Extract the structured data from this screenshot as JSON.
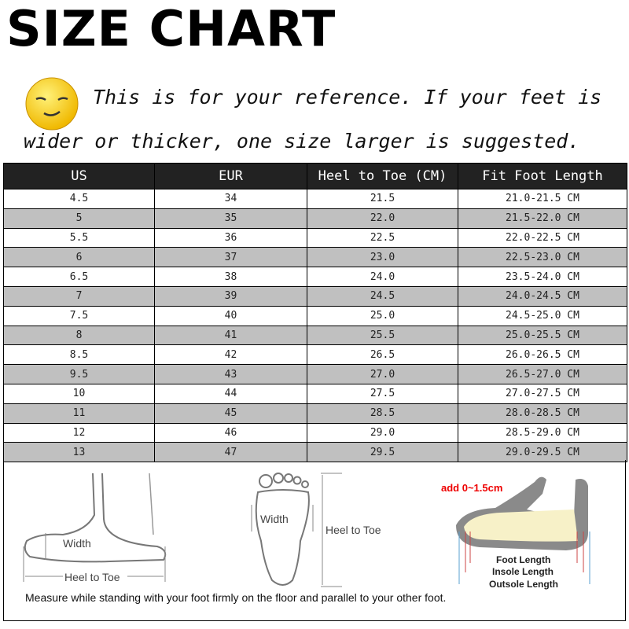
{
  "title": "SIZE CHART",
  "note": {
    "line1": "This is for your reference. If your feet is",
    "line2": "wider or thicker, one size larger is suggested.",
    "icon": "smiley-face-icon"
  },
  "table": {
    "headers": [
      "US",
      "EUR",
      "Heel to Toe (CM)",
      "Fit Foot Length"
    ],
    "rows": [
      [
        "4.5",
        "34",
        "21.5",
        "21.0-21.5 CM"
      ],
      [
        "5",
        "35",
        "22.0",
        "21.5-22.0 CM"
      ],
      [
        "5.5",
        "36",
        "22.5",
        "22.0-22.5 CM"
      ],
      [
        "6",
        "37",
        "23.0",
        "22.5-23.0 CM"
      ],
      [
        "6.5",
        "38",
        "24.0",
        "23.5-24.0 CM"
      ],
      [
        "7",
        "39",
        "24.5",
        "24.0-24.5 CM"
      ],
      [
        "7.5",
        "40",
        "25.0",
        "24.5-25.0 CM"
      ],
      [
        "8",
        "41",
        "25.5",
        "25.0-25.5 CM"
      ],
      [
        "8.5",
        "42",
        "26.5",
        "26.0-26.5 CM"
      ],
      [
        "9.5",
        "43",
        "27.0",
        "26.5-27.0 CM"
      ],
      [
        "10",
        "44",
        "27.5",
        "27.0-27.5 CM"
      ],
      [
        "11",
        "45",
        "28.5",
        "28.0-28.5 CM"
      ],
      [
        "12",
        "46",
        "29.0",
        "28.5-29.0 CM"
      ],
      [
        "13",
        "47",
        "29.5",
        "29.0-29.5 CM"
      ]
    ],
    "header_bg": "#222222",
    "alt_row_bg": "#c0c0c0"
  },
  "diagrams": {
    "side_foot": {
      "width": "Width",
      "heel_to_toe": "Heel to Toe"
    },
    "top_foot": {
      "width": "Width",
      "heel_to_toe": "Heel to Toe"
    },
    "shoe": {
      "add": "add 0~1.5cm",
      "foot_length": "Foot Length",
      "insole_length": "Insole Length",
      "outsole_length": "Outsole Length"
    }
  },
  "measure_note": "Measure while standing with your foot firmly on the floor and parallel to your other foot."
}
